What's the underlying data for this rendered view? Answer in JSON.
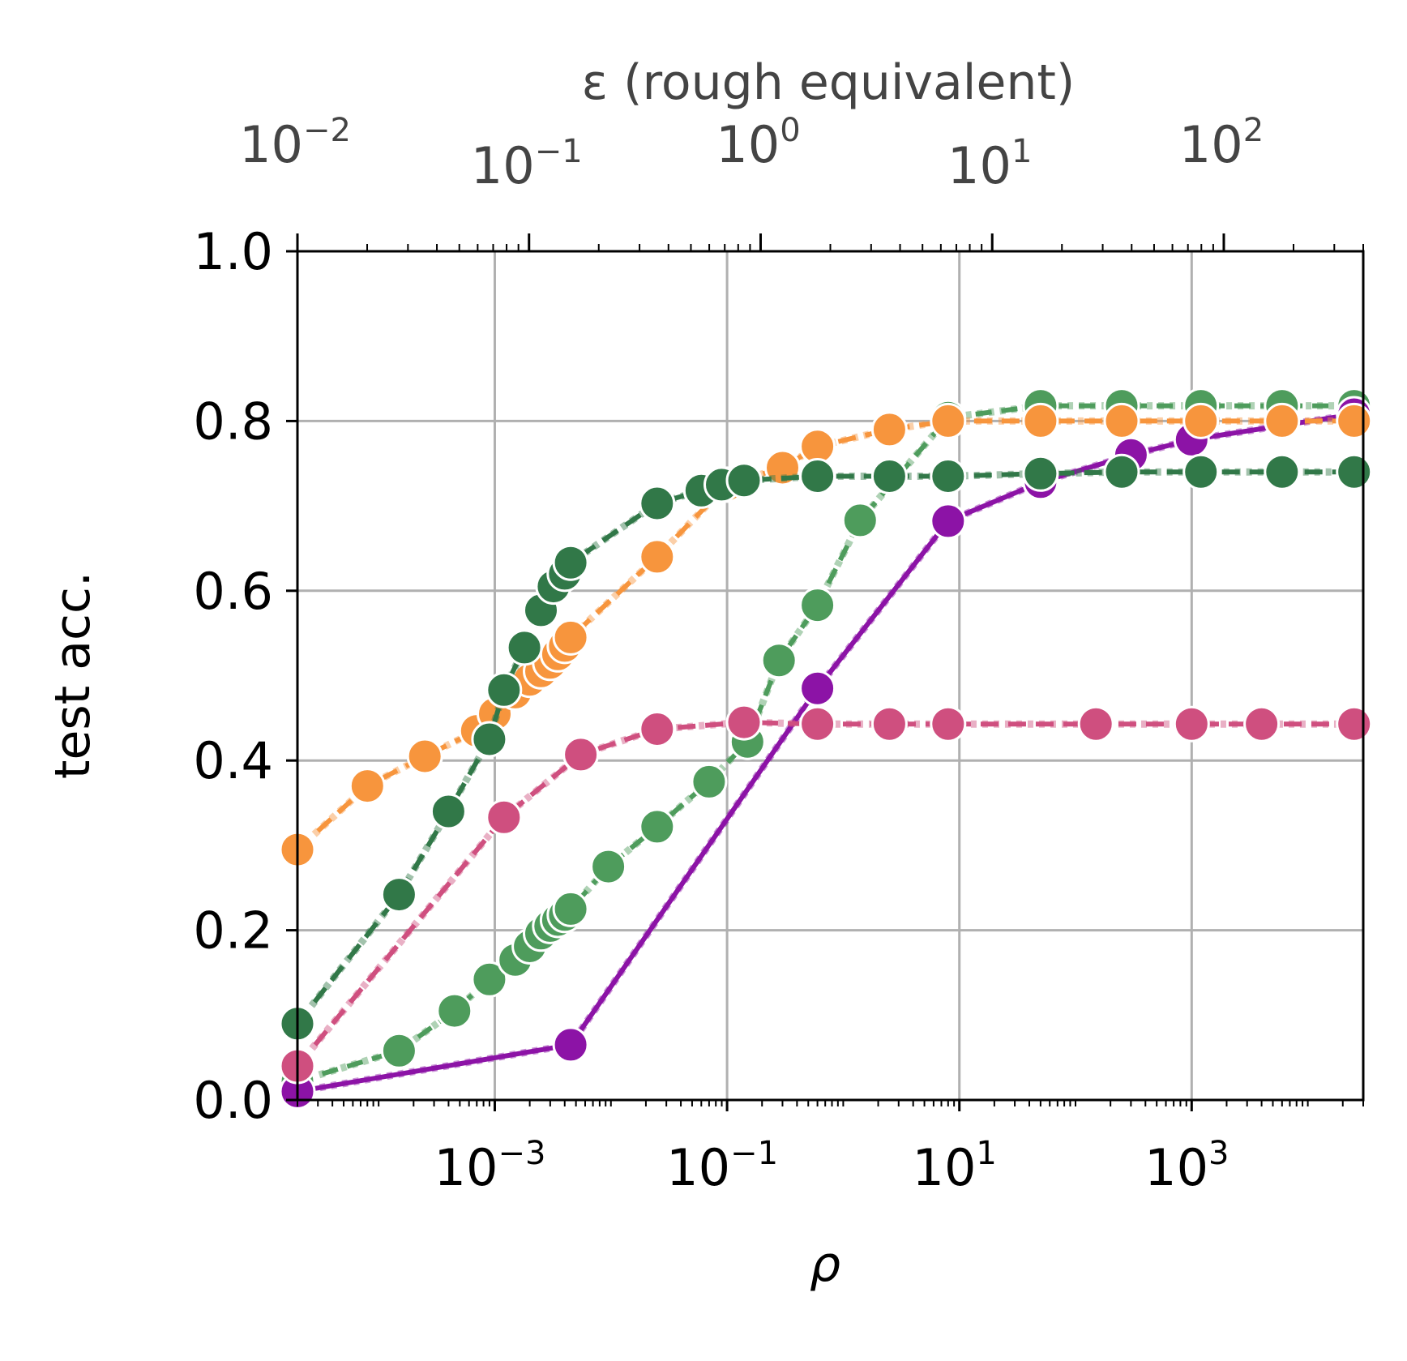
{
  "chart_data": {
    "type": "line",
    "xlabel": "ρ",
    "ylabel": "test acc.",
    "top_xlabel": "ε (rough equivalent)",
    "xscale": "log",
    "xlim": [
      2e-05,
      30000
    ],
    "ylim": [
      0.0,
      1.0
    ],
    "grid": true,
    "x_ticks": [
      {
        "value": 0.001,
        "base": "10",
        "exp": "−3"
      },
      {
        "value": 0.1,
        "base": "10",
        "exp": "−1"
      },
      {
        "value": 10,
        "base": "10",
        "exp": "1"
      },
      {
        "value": 1000,
        "base": "10",
        "exp": "3"
      }
    ],
    "y_ticks": [
      {
        "value": 0.0,
        "label": "0.0"
      },
      {
        "value": 0.2,
        "label": "0.2"
      },
      {
        "value": 0.4,
        "label": "0.4"
      },
      {
        "value": 0.6,
        "label": "0.6"
      },
      {
        "value": 0.8,
        "label": "0.8"
      },
      {
        "value": 1.0,
        "label": "1.0"
      }
    ],
    "top_axis": {
      "scale": "log",
      "lim": [
        0.01,
        400
      ],
      "ticks": [
        {
          "value": 0.01,
          "base": "10",
          "exp": "−2"
        },
        {
          "value": 0.1,
          "base": "10",
          "exp": "−1"
        },
        {
          "value": 1,
          "base": "10",
          "exp": "0"
        },
        {
          "value": 10,
          "base": "10",
          "exp": "1"
        },
        {
          "value": 100,
          "base": "10",
          "exp": "2"
        }
      ]
    },
    "series": [
      {
        "color": "#4e9c5c",
        "dash": "20 12",
        "x": [
          2e-05,
          0.00015,
          0.00045,
          0.0009,
          0.0015,
          0.002,
          0.0025,
          0.003,
          0.0035,
          0.004,
          0.0045,
          0.0095,
          0.025,
          0.07,
          0.15,
          0.28,
          0.6,
          1.4,
          8,
          50,
          250,
          1200,
          6000,
          25000
        ],
        "y": [
          0.022,
          0.058,
          0.105,
          0.142,
          0.165,
          0.181,
          0.196,
          0.205,
          0.212,
          0.218,
          0.225,
          0.275,
          0.322,
          0.375,
          0.422,
          0.518,
          0.583,
          0.683,
          0.804,
          0.818,
          0.818,
          0.818,
          0.818,
          0.818
        ]
      },
      {
        "color": "#8c13a6",
        "dash": "",
        "x": [
          2e-05,
          0.0045,
          0.6,
          8,
          50,
          300,
          1000,
          25000
        ],
        "y": [
          0.01,
          0.065,
          0.485,
          0.682,
          0.728,
          0.76,
          0.778,
          0.808
        ]
      },
      {
        "color": "#cf4f7f",
        "dash": "22 12",
        "x": [
          2e-05,
          0.0012,
          0.0055,
          0.025,
          0.14,
          0.6,
          2.5,
          8,
          150,
          1000,
          4000,
          25000
        ],
        "y": [
          0.04,
          0.333,
          0.407,
          0.437,
          0.445,
          0.443,
          0.443,
          0.443,
          0.443,
          0.443,
          0.443,
          0.443
        ]
      },
      {
        "color": "#f7953d",
        "dash": "22 12",
        "x": [
          2e-05,
          8e-05,
          0.00025,
          0.0007,
          0.001,
          0.0015,
          0.002,
          0.0025,
          0.003,
          0.0035,
          0.004,
          0.0045,
          0.025,
          0.1,
          0.3,
          0.6,
          2.5,
          8,
          50,
          250,
          1200,
          6000,
          25000
        ],
        "y": [
          0.295,
          0.37,
          0.405,
          0.435,
          0.455,
          0.48,
          0.495,
          0.505,
          0.515,
          0.525,
          0.535,
          0.545,
          0.64,
          0.725,
          0.745,
          0.77,
          0.79,
          0.8,
          0.8,
          0.8,
          0.8,
          0.8,
          0.8
        ]
      },
      {
        "color": "#317848",
        "dash": "22 12",
        "x": [
          2e-05,
          0.00015,
          0.0004,
          0.0009,
          0.0012,
          0.0018,
          0.0025,
          0.0032,
          0.004,
          0.0045,
          0.025,
          0.06,
          0.09,
          0.14,
          0.6,
          2.5,
          8,
          50,
          250,
          1200,
          6000,
          25000
        ],
        "y": [
          0.09,
          0.242,
          0.34,
          0.425,
          0.483,
          0.533,
          0.577,
          0.605,
          0.62,
          0.633,
          0.703,
          0.718,
          0.725,
          0.73,
          0.735,
          0.735,
          0.735,
          0.738,
          0.74,
          0.74,
          0.74,
          0.74
        ]
      }
    ]
  }
}
